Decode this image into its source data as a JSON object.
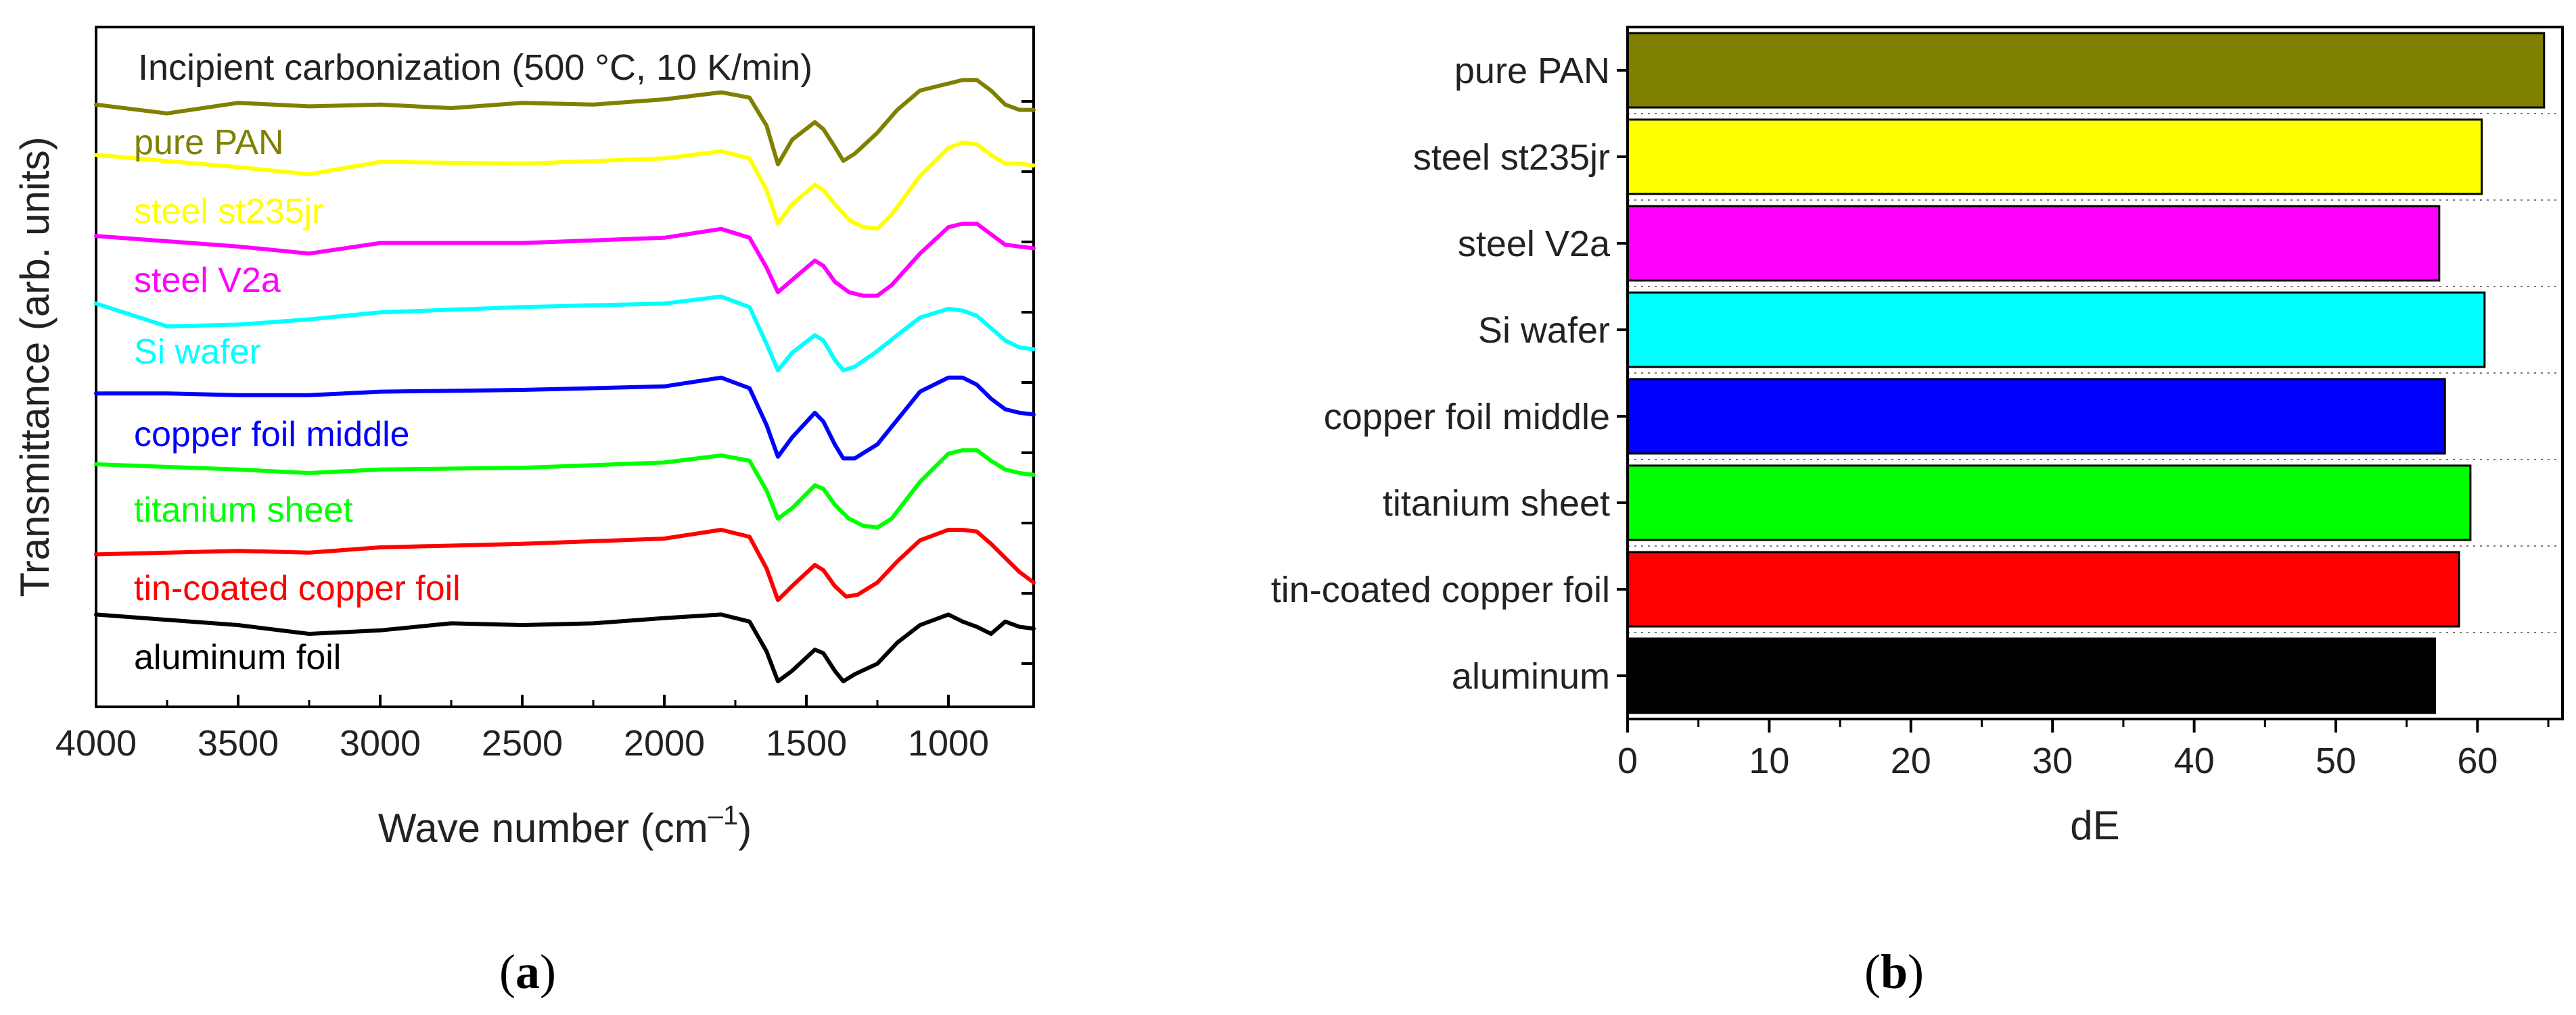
{
  "chart_data": [
    {
      "panel": "a",
      "type": "line",
      "title": "Incipient carbonization (500 °C, 10 K/min)",
      "xlabel": "Wave number (cm",
      "xlabel_sup": "–1",
      "xlabel_close": ")",
      "ylabel": "Transmittance (arb. units)",
      "xlim": [
        4000,
        700
      ],
      "xticks": [
        4000,
        3500,
        3000,
        2500,
        2000,
        1500,
        1000
      ],
      "y_units": "arbitrary (stacked, offset)",
      "series": [
        {
          "name": "pure PAN",
          "color": "#808000",
          "offset": 0,
          "points": [
            [
              4000,
              0.2
            ],
            [
              3750,
              -0.3
            ],
            [
              3500,
              0.3
            ],
            [
              3250,
              0.1
            ],
            [
              3000,
              0.2
            ],
            [
              2750,
              0.0
            ],
            [
              2500,
              0.3
            ],
            [
              2250,
              0.2
            ],
            [
              2000,
              0.5
            ],
            [
              1800,
              0.9
            ],
            [
              1700,
              0.6
            ],
            [
              1640,
              -1.0
            ],
            [
              1600,
              -3.2
            ],
            [
              1550,
              -1.8
            ],
            [
              1470,
              -0.8
            ],
            [
              1440,
              -1.2
            ],
            [
              1400,
              -2.2
            ],
            [
              1370,
              -3.0
            ],
            [
              1330,
              -2.6
            ],
            [
              1250,
              -1.4
            ],
            [
              1180,
              -0.1
            ],
            [
              1100,
              1.0
            ],
            [
              1000,
              1.4
            ],
            [
              950,
              1.6
            ],
            [
              900,
              1.6
            ],
            [
              850,
              1.0
            ],
            [
              800,
              0.2
            ],
            [
              750,
              -0.1
            ],
            [
              700,
              -0.1
            ]
          ]
        },
        {
          "name": "steel st235jr",
          "color": "#FFFF00",
          "offset": 0,
          "points": [
            [
              4000,
              0.8
            ],
            [
              3500,
              0.1
            ],
            [
              3250,
              -0.3
            ],
            [
              3000,
              0.4
            ],
            [
              2500,
              0.3
            ],
            [
              2000,
              0.6
            ],
            [
              1800,
              1.0
            ],
            [
              1700,
              0.6
            ],
            [
              1640,
              -1.2
            ],
            [
              1600,
              -3.1
            ],
            [
              1550,
              -2.0
            ],
            [
              1470,
              -0.9
            ],
            [
              1440,
              -1.2
            ],
            [
              1400,
              -2.0
            ],
            [
              1350,
              -2.9
            ],
            [
              1300,
              -3.3
            ],
            [
              1250,
              -3.4
            ],
            [
              1200,
              -2.6
            ],
            [
              1100,
              -0.4
            ],
            [
              1000,
              1.2
            ],
            [
              950,
              1.5
            ],
            [
              900,
              1.4
            ],
            [
              850,
              0.8
            ],
            [
              800,
              0.3
            ],
            [
              750,
              0.3
            ],
            [
              700,
              0.2
            ]
          ]
        },
        {
          "name": "steel V2a",
          "color": "#FF00FF",
          "offset": 0,
          "points": [
            [
              4000,
              0.8
            ],
            [
              3500,
              0.2
            ],
            [
              3250,
              -0.2
            ],
            [
              3000,
              0.4
            ],
            [
              2500,
              0.4
            ],
            [
              2000,
              0.7
            ],
            [
              1800,
              1.2
            ],
            [
              1700,
              0.7
            ],
            [
              1640,
              -1.0
            ],
            [
              1600,
              -2.4
            ],
            [
              1550,
              -1.7
            ],
            [
              1470,
              -0.6
            ],
            [
              1440,
              -0.9
            ],
            [
              1400,
              -1.8
            ],
            [
              1350,
              -2.4
            ],
            [
              1300,
              -2.6
            ],
            [
              1250,
              -2.6
            ],
            [
              1200,
              -2.0
            ],
            [
              1100,
              -0.2
            ],
            [
              1000,
              1.3
            ],
            [
              950,
              1.5
            ],
            [
              900,
              1.5
            ],
            [
              850,
              0.9
            ],
            [
              800,
              0.3
            ],
            [
              750,
              0.2
            ],
            [
              700,
              0.1
            ]
          ]
        },
        {
          "name": "Si wafer",
          "color": "#00FFFF",
          "offset": 0,
          "points": [
            [
              4000,
              0.8
            ],
            [
              3750,
              -0.5
            ],
            [
              3500,
              -0.4
            ],
            [
              3250,
              -0.1
            ],
            [
              3000,
              0.3
            ],
            [
              2500,
              0.6
            ],
            [
              2000,
              0.8
            ],
            [
              1800,
              1.2
            ],
            [
              1700,
              0.6
            ],
            [
              1640,
              -1.5
            ],
            [
              1600,
              -3.0
            ],
            [
              1550,
              -2.0
            ],
            [
              1470,
              -1.0
            ],
            [
              1440,
              -1.3
            ],
            [
              1400,
              -2.4
            ],
            [
              1370,
              -3.0
            ],
            [
              1330,
              -2.8
            ],
            [
              1250,
              -1.9
            ],
            [
              1180,
              -1.0
            ],
            [
              1100,
              0.0
            ],
            [
              1000,
              0.5
            ],
            [
              950,
              0.4
            ],
            [
              900,
              0.1
            ],
            [
              850,
              -0.6
            ],
            [
              800,
              -1.3
            ],
            [
              750,
              -1.7
            ],
            [
              700,
              -1.8
            ]
          ]
        },
        {
          "name": "copper foil middle",
          "color": "#0000FF",
          "offset": 0,
          "points": [
            [
              4000,
              0.3
            ],
            [
              3750,
              0.3
            ],
            [
              3500,
              0.2
            ],
            [
              3250,
              0.2
            ],
            [
              3000,
              0.4
            ],
            [
              2500,
              0.5
            ],
            [
              2000,
              0.7
            ],
            [
              1800,
              1.2
            ],
            [
              1700,
              0.6
            ],
            [
              1640,
              -1.5
            ],
            [
              1600,
              -3.3
            ],
            [
              1550,
              -2.2
            ],
            [
              1470,
              -0.8
            ],
            [
              1440,
              -1.3
            ],
            [
              1400,
              -2.6
            ],
            [
              1370,
              -3.4
            ],
            [
              1330,
              -3.4
            ],
            [
              1250,
              -2.6
            ],
            [
              1180,
              -1.2
            ],
            [
              1100,
              0.4
            ],
            [
              1000,
              1.2
            ],
            [
              950,
              1.2
            ],
            [
              900,
              0.8
            ],
            [
              850,
              0.0
            ],
            [
              800,
              -0.6
            ],
            [
              750,
              -0.8
            ],
            [
              700,
              -0.9
            ]
          ]
        },
        {
          "name": "titanium sheet",
          "color": "#00FF00",
          "offset": 0,
          "points": [
            [
              4000,
              0.5
            ],
            [
              3500,
              0.2
            ],
            [
              3250,
              0.0
            ],
            [
              3000,
              0.2
            ],
            [
              2500,
              0.3
            ],
            [
              2000,
              0.6
            ],
            [
              1800,
              1.0
            ],
            [
              1700,
              0.7
            ],
            [
              1640,
              -1.0
            ],
            [
              1600,
              -2.6
            ],
            [
              1550,
              -2.0
            ],
            [
              1470,
              -0.7
            ],
            [
              1440,
              -0.9
            ],
            [
              1400,
              -1.8
            ],
            [
              1350,
              -2.6
            ],
            [
              1300,
              -3.0
            ],
            [
              1250,
              -3.1
            ],
            [
              1200,
              -2.6
            ],
            [
              1100,
              -0.5
            ],
            [
              1000,
              1.1
            ],
            [
              950,
              1.3
            ],
            [
              900,
              1.3
            ],
            [
              850,
              0.7
            ],
            [
              800,
              0.2
            ],
            [
              750,
              0.0
            ],
            [
              700,
              -0.1
            ]
          ]
        },
        {
          "name": "tin-coated copper foil",
          "color": "#FF0000",
          "offset": 0,
          "points": [
            [
              4000,
              -0.4
            ],
            [
              3500,
              -0.2
            ],
            [
              3250,
              -0.3
            ],
            [
              3000,
              0.0
            ],
            [
              2500,
              0.2
            ],
            [
              2000,
              0.5
            ],
            [
              1800,
              1.0
            ],
            [
              1700,
              0.6
            ],
            [
              1640,
              -1.2
            ],
            [
              1600,
              -3.0
            ],
            [
              1550,
              -2.2
            ],
            [
              1470,
              -1.0
            ],
            [
              1440,
              -1.3
            ],
            [
              1400,
              -2.2
            ],
            [
              1360,
              -2.8
            ],
            [
              1320,
              -2.7
            ],
            [
              1250,
              -2.0
            ],
            [
              1180,
              -0.8
            ],
            [
              1100,
              0.4
            ],
            [
              1000,
              1.0
            ],
            [
              950,
              1.0
            ],
            [
              900,
              0.9
            ],
            [
              850,
              0.2
            ],
            [
              800,
              -0.6
            ],
            [
              750,
              -1.4
            ],
            [
              700,
              -2.0
            ]
          ]
        },
        {
          "name": "aluminum foil",
          "color": "#000000",
          "offset": 0,
          "points": [
            [
              4000,
              0.6
            ],
            [
              3750,
              0.3
            ],
            [
              3500,
              0.0
            ],
            [
              3250,
              -0.5
            ],
            [
              3000,
              -0.3
            ],
            [
              2750,
              0.1
            ],
            [
              2500,
              0.0
            ],
            [
              2250,
              0.1
            ],
            [
              2000,
              0.4
            ],
            [
              1800,
              0.6
            ],
            [
              1700,
              0.2
            ],
            [
              1640,
              -1.5
            ],
            [
              1600,
              -3.2
            ],
            [
              1550,
              -2.6
            ],
            [
              1470,
              -1.4
            ],
            [
              1440,
              -1.6
            ],
            [
              1400,
              -2.6
            ],
            [
              1370,
              -3.2
            ],
            [
              1330,
              -2.8
            ],
            [
              1250,
              -2.2
            ],
            [
              1180,
              -1.0
            ],
            [
              1100,
              0.0
            ],
            [
              1000,
              0.6
            ],
            [
              950,
              0.2
            ],
            [
              900,
              -0.1
            ],
            [
              850,
              -0.5
            ],
            [
              800,
              0.2
            ],
            [
              750,
              -0.1
            ],
            [
              700,
              -0.2
            ]
          ]
        }
      ]
    },
    {
      "panel": "b",
      "type": "bar",
      "orientation": "horizontal",
      "categories": [
        "pure PAN",
        "steel st235jr",
        "steel V2a",
        "Si wafer",
        "copper foil middle",
        "titanium sheet",
        "tin-coated copper foil",
        "aluminum"
      ],
      "values": [
        64.7,
        60.3,
        57.3,
        60.5,
        57.7,
        59.5,
        58.7,
        57.0
      ],
      "colors": [
        "#808000",
        "#FFFF00",
        "#FF00FF",
        "#00FFFF",
        "#0000FF",
        "#00FF00",
        "#FF0000",
        "#000000"
      ],
      "xlabel": "dE",
      "ylabel": "",
      "xlim": [
        0,
        66
      ],
      "xticks": [
        0,
        10,
        20,
        30,
        40,
        50,
        60
      ],
      "grid": "dotted horizontal"
    }
  ],
  "captions": {
    "a": "a",
    "b": "b"
  }
}
